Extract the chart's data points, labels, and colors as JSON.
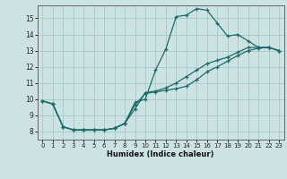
{
  "background_color": "#cde3e3",
  "grid_color": "#aacccc",
  "line_color": "#1a6b6b",
  "xlabel": "Humidex (Indice chaleur)",
  "xlim": [
    -0.5,
    23.5
  ],
  "ylim": [
    7.5,
    15.8
  ],
  "yticks": [
    8,
    9,
    10,
    11,
    12,
    13,
    14,
    15
  ],
  "xticks": [
    0,
    1,
    2,
    3,
    4,
    5,
    6,
    7,
    8,
    9,
    10,
    11,
    12,
    13,
    14,
    15,
    16,
    17,
    18,
    19,
    20,
    21,
    22,
    23
  ],
  "line1_x": [
    0,
    1,
    2,
    3,
    4,
    5,
    6,
    7,
    8,
    9,
    10,
    11,
    12,
    13,
    14,
    15,
    16,
    17,
    18,
    19,
    20,
    21,
    22,
    23
  ],
  "line1_y": [
    9.9,
    9.7,
    8.3,
    8.1,
    8.1,
    8.1,
    8.1,
    8.2,
    8.5,
    9.8,
    10.0,
    11.8,
    13.1,
    15.1,
    15.2,
    15.6,
    15.5,
    14.7,
    13.9,
    14.0,
    13.6,
    13.2,
    13.2,
    13.0
  ],
  "line2_x": [
    0,
    1,
    2,
    3,
    4,
    5,
    6,
    7,
    8,
    9,
    10,
    11,
    12,
    13,
    14,
    15,
    16,
    17,
    18,
    19,
    20,
    21,
    22,
    23
  ],
  "line2_y": [
    9.9,
    9.7,
    8.3,
    8.1,
    8.1,
    8.1,
    8.1,
    8.2,
    8.5,
    9.65,
    10.35,
    10.45,
    10.55,
    10.65,
    10.8,
    11.2,
    11.7,
    12.0,
    12.35,
    12.7,
    13.0,
    13.15,
    13.2,
    13.0
  ],
  "line3_x": [
    0,
    1,
    2,
    3,
    4,
    5,
    6,
    7,
    8,
    9,
    10,
    11,
    12,
    13,
    14,
    15,
    16,
    17,
    18,
    19,
    20,
    21,
    22,
    23
  ],
  "line3_y": [
    9.9,
    9.7,
    8.3,
    8.1,
    8.1,
    8.1,
    8.1,
    8.2,
    8.5,
    9.4,
    10.4,
    10.5,
    10.7,
    11.0,
    11.4,
    11.8,
    12.2,
    12.4,
    12.6,
    12.9,
    13.2,
    13.2,
    13.2,
    13.0
  ]
}
